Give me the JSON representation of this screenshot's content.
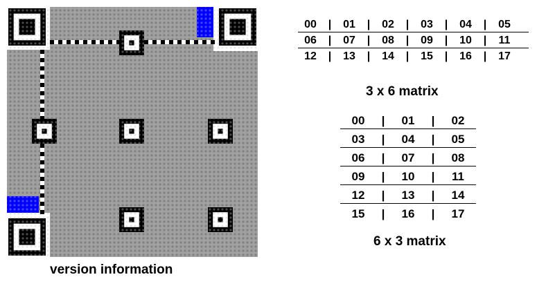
{
  "captions": {
    "version": "version information",
    "matrix_3x6": "3 x 6 matrix",
    "matrix_6x3": "6 x 3 matrix"
  },
  "colors": {
    "module_light": "#a0a0a0",
    "module_dark": "#808080",
    "finder_dark": "#000000",
    "finder_light": "#ffffff",
    "version_info": "#0000ff"
  },
  "matrix_3x6": {
    "rows": [
      [
        "00",
        "01",
        "02",
        "03",
        "04",
        "05"
      ],
      [
        "06",
        "07",
        "08",
        "09",
        "10",
        "11"
      ],
      [
        "12",
        "13",
        "14",
        "15",
        "16",
        "17"
      ]
    ],
    "separator": "|"
  },
  "matrix_6x3": {
    "rows": [
      [
        "00",
        "01",
        "02"
      ],
      [
        "03",
        "04",
        "05"
      ],
      [
        "06",
        "07",
        "08"
      ],
      [
        "09",
        "10",
        "11"
      ],
      [
        "12",
        "13",
        "14"
      ],
      [
        "15",
        "16",
        "17"
      ]
    ],
    "separator": "|"
  }
}
